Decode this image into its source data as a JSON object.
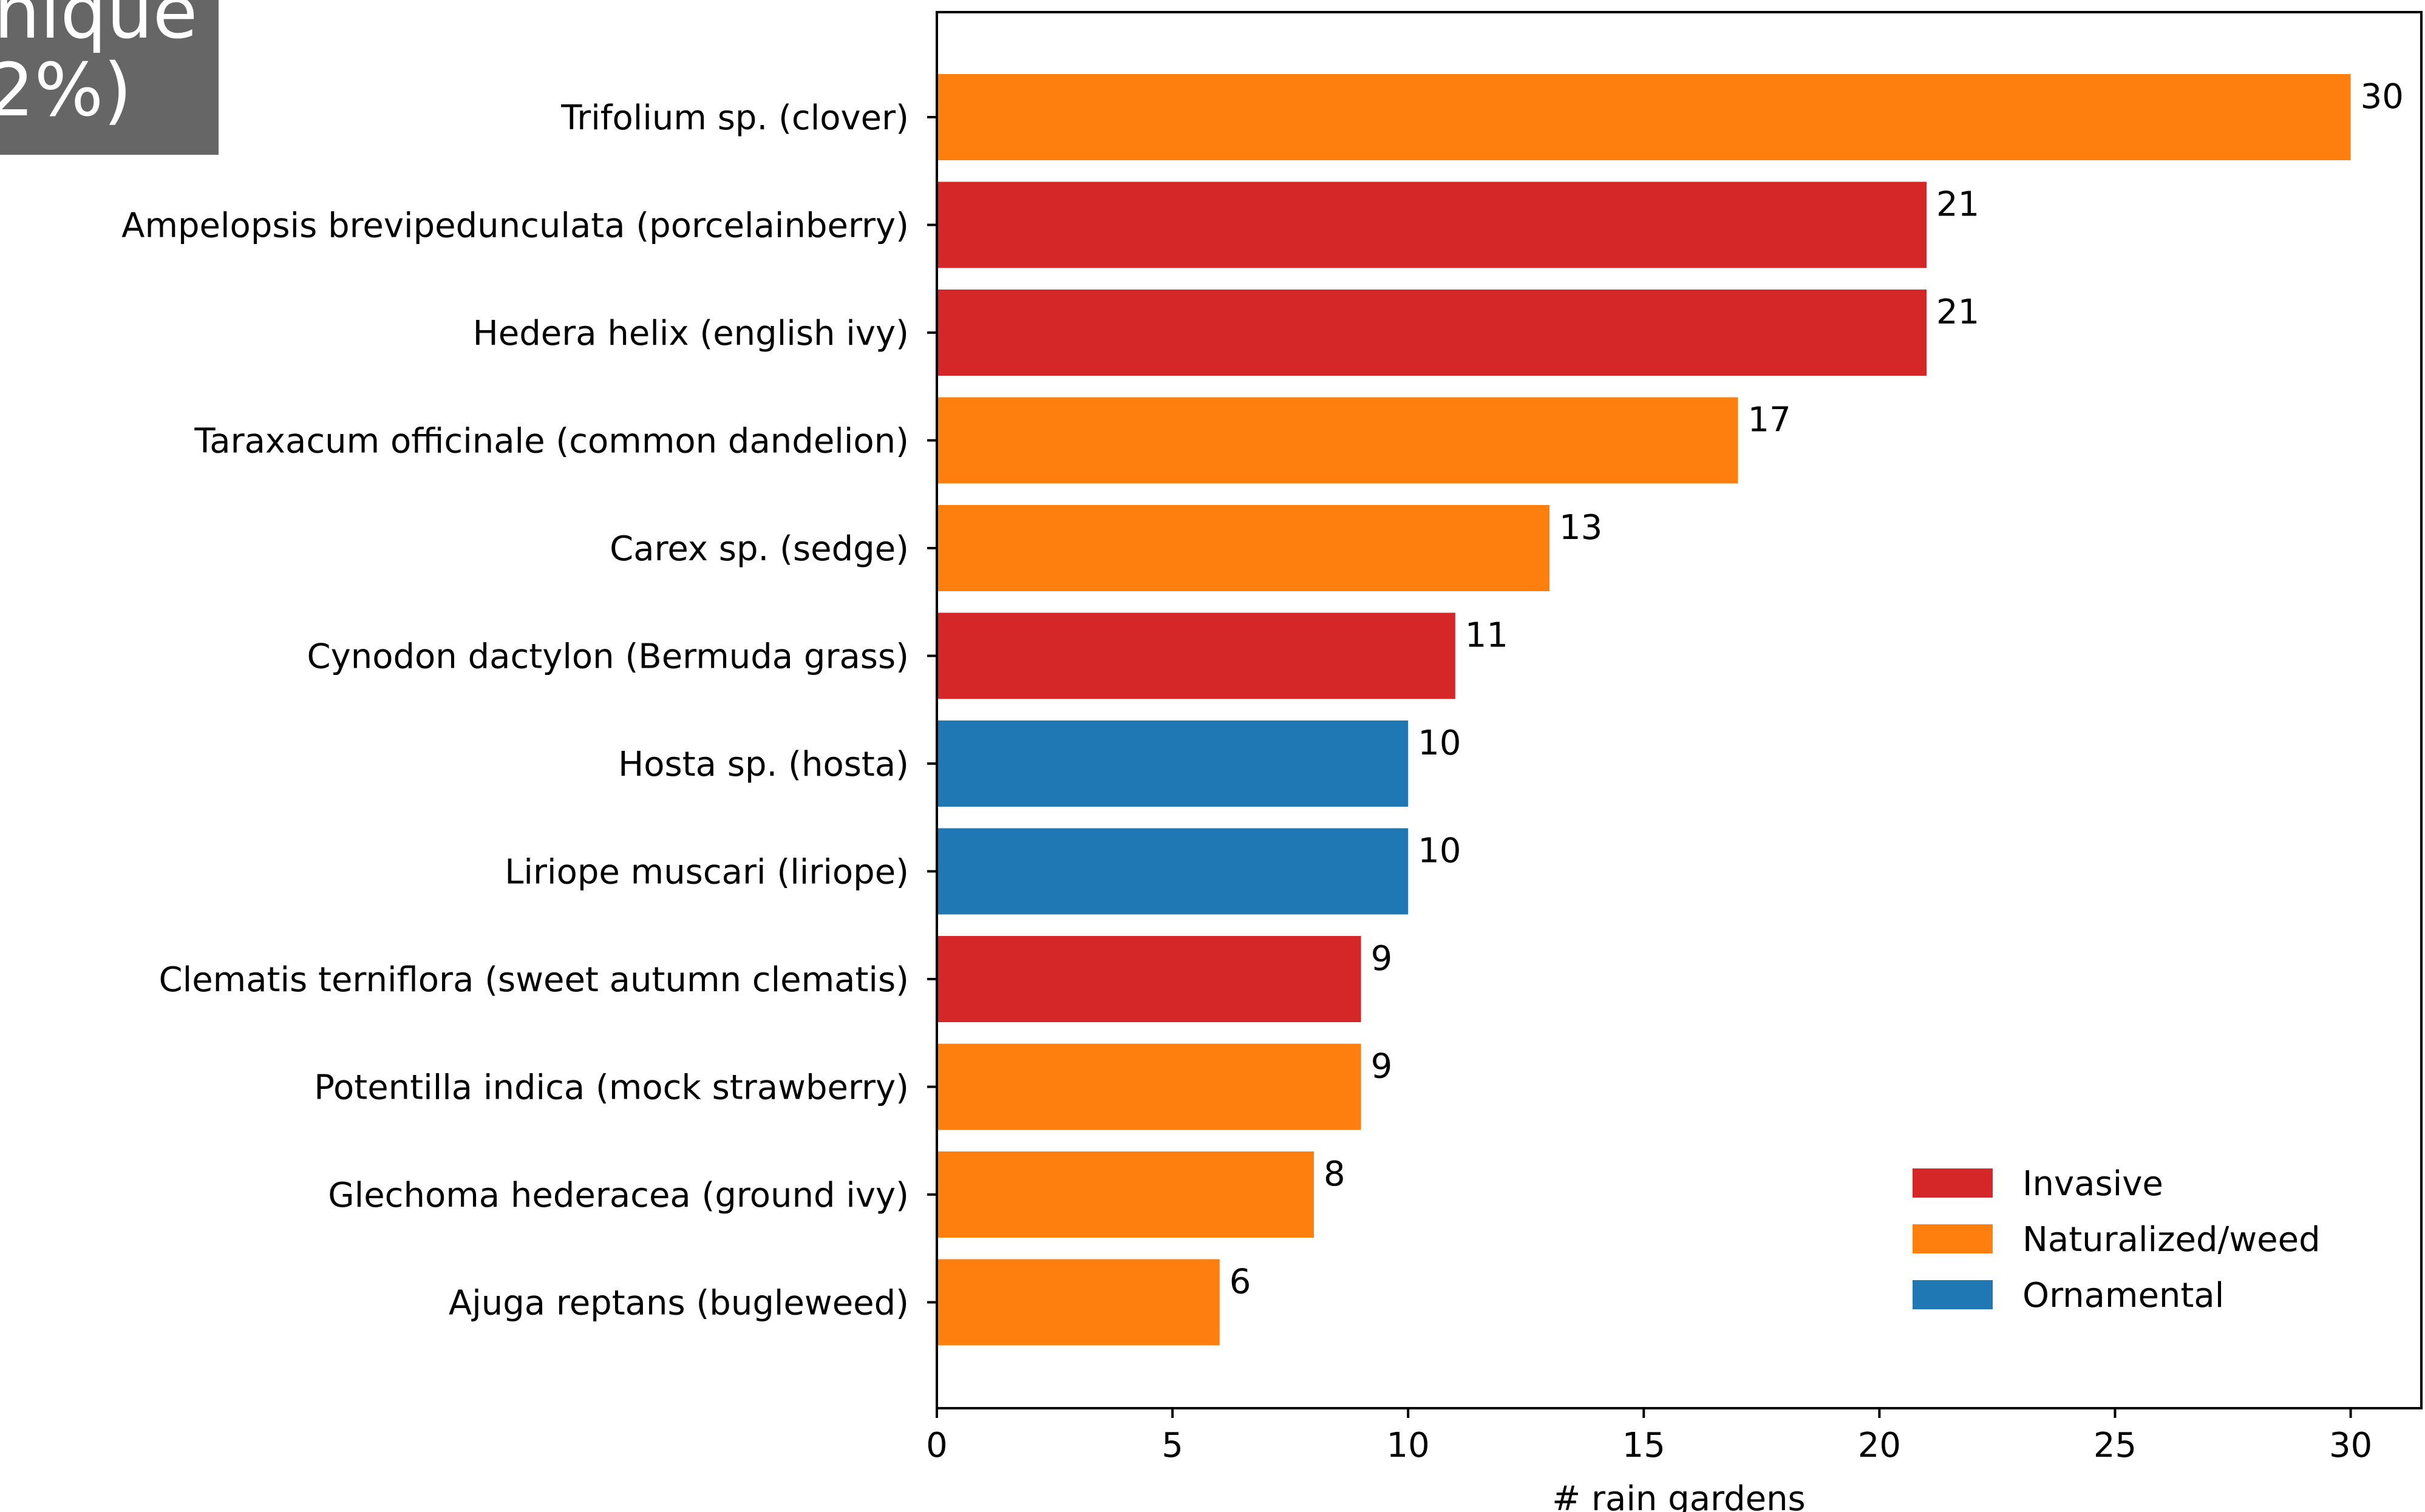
{
  "badge": {
    "lines": [
      "nique",
      "2%)"
    ],
    "color": "#666666"
  },
  "chart_data": {
    "type": "bar",
    "orientation": "horizontal",
    "categories": [
      "Trifolium sp. (clover)",
      "Ampelopsis brevipedunculata (porcelainberry)",
      "Hedera helix (english ivy)",
      "Taraxacum officinale (common dandelion)",
      "Carex sp. (sedge)",
      "Cynodon dactylon (Bermuda grass)",
      "Hosta sp. (hosta)",
      "Liriope muscari (liriope)",
      "Clematis terniflora (sweet autumn clematis)",
      "Potentilla indica (mock strawberry)",
      "Glechoma hederacea (ground ivy)",
      "Ajuga reptans (bugleweed)"
    ],
    "values": [
      30,
      21,
      21,
      17,
      13,
      11,
      10,
      10,
      9,
      9,
      8,
      6
    ],
    "value_labels": [
      "30",
      "21",
      "21",
      "17",
      "13",
      "11",
      "10",
      "10",
      "9",
      "9",
      "8",
      "6"
    ],
    "groups": [
      "Naturalized/weed",
      "Invasive",
      "Invasive",
      "Naturalized/weed",
      "Naturalized/weed",
      "Invasive",
      "Ornamental",
      "Ornamental",
      "Invasive",
      "Naturalized/weed",
      "Naturalized/weed",
      "Naturalized/weed"
    ],
    "legend": [
      {
        "name": "Invasive",
        "color": "#d62728"
      },
      {
        "name": "Naturalized/weed",
        "color": "#ff7f0e"
      },
      {
        "name": "Ornamental",
        "color": "#1f77b4"
      }
    ],
    "legend_position": "lower-right",
    "xlabel": "# rain gardens",
    "ylabel": "",
    "title": "",
    "xlim": [
      0,
      31.5
    ],
    "xticks": [
      0,
      5,
      10,
      15,
      20,
      25,
      30
    ],
    "xtick_labels": [
      "0",
      "5",
      "10",
      "15",
      "20",
      "25",
      "30"
    ],
    "grid": false
  }
}
